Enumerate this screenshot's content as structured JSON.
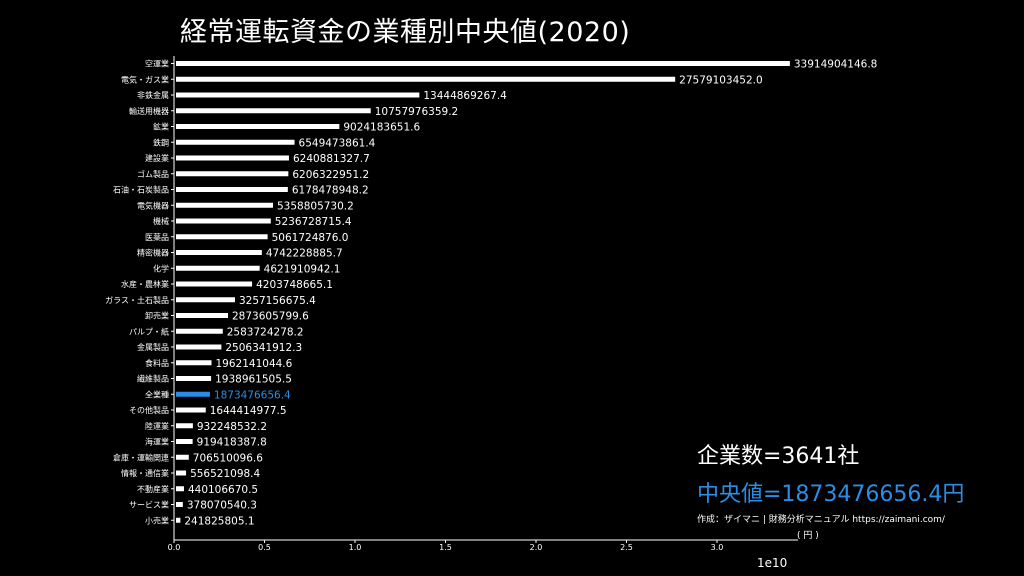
{
  "chart_data": {
    "type": "bar",
    "orientation": "horizontal",
    "title": "経常運転資金の業種別中央値(2020)",
    "categories": [
      "空運業",
      "電気・ガス業",
      "非鉄金属",
      "輸送用機器",
      "鉱業",
      "鉄鋼",
      "建設業",
      "ゴム製品",
      "石油・石炭製品",
      "電気機器",
      "機械",
      "医薬品",
      "精密機器",
      "化学",
      "水産・農林業",
      "ガラス・土石製品",
      "卸売業",
      "パルプ・紙",
      "金属製品",
      "食料品",
      "繊維製品",
      "全業種",
      "その他製品",
      "陸運業",
      "海運業",
      "倉庫・運輸関連",
      "情報・通信業",
      "不動産業",
      "サービス業",
      "小売業"
    ],
    "values": [
      33914904146.8,
      27579103452.0,
      13444869267.4,
      10757976359.2,
      9024183651.6,
      6549473861.4,
      6240881327.7,
      6206322951.2,
      6178478948.2,
      5358805730.2,
      5236728715.4,
      5061724876.0,
      4742228885.7,
      4621910942.1,
      4203748665.1,
      3257156675.4,
      2873605799.6,
      2583724278.2,
      2506341912.3,
      1962141044.6,
      1938961505.5,
      1873476656.4,
      1644414977.5,
      932248532.2,
      919418387.8,
      706510096.6,
      556521098.4,
      440106670.5,
      378070540.3,
      241825805.1
    ],
    "value_labels": [
      "33914904146.8",
      "27579103452.0",
      "13444869267.4",
      "10757976359.2",
      "9024183651.6",
      "6549473861.4",
      "6240881327.7",
      "6206322951.2",
      "6178478948.2",
      "5358805730.2",
      "5236728715.4",
      "5061724876.0",
      "4742228885.7",
      "4621910942.1",
      "4203748665.1",
      "3257156675.4",
      "2873605799.6",
      "2583724278.2",
      "2506341912.3",
      "1962141044.6",
      "1938961505.5",
      "1873476656.4",
      "1644414977.5",
      "932248532.2",
      "919418387.8",
      "706510096.6",
      "556521098.4",
      "440106670.5",
      "378070540.3",
      "241825805.1"
    ],
    "highlight_category": "全業種",
    "xlim": [
      0,
      35000000000
    ],
    "xticks": [
      0,
      5000000000,
      10000000000,
      15000000000,
      20000000000,
      25000000000,
      30000000000
    ],
    "xtick_labels": [
      "0.0",
      "0.5",
      "1.0",
      "1.5",
      "2.0",
      "2.5",
      "3.0"
    ],
    "x_exponent_label": "1e10",
    "bar_color": "#ffffff",
    "highlight_color": "#2a8ee6",
    "background_color": "#000000",
    "grid": false
  },
  "annotations": {
    "company_count": "企業数=3641社",
    "median": "中央値=1873476656.4円",
    "credit": "作成：ザイマニ | 財務分析マニュアル https://zaimani.com/",
    "unit": "( 円 )"
  }
}
